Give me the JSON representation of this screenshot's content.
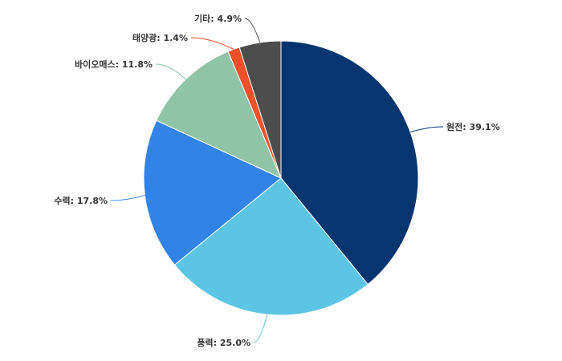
{
  "chart_data": {
    "type": "pie",
    "title": "",
    "slices": [
      {
        "label": "원전",
        "value": 39.1,
        "display": "39.1%",
        "color": "#063570"
      },
      {
        "label": "풍력",
        "value": 25.0,
        "display": "25.0%",
        "color": "#5cc5e4"
      },
      {
        "label": "수력",
        "value": 17.8,
        "display": "17.8%",
        "color": "#3183e6"
      },
      {
        "label": "바이오매스",
        "value": 11.8,
        "display": "11.8%",
        "color": "#8fc4a7"
      },
      {
        "label": "태양광",
        "value": 1.4,
        "display": "1.4%",
        "color": "#f0502a"
      },
      {
        "label": "기타",
        "value": 4.9,
        "display": "4.9%",
        "color": "#4d4d4d"
      }
    ]
  }
}
